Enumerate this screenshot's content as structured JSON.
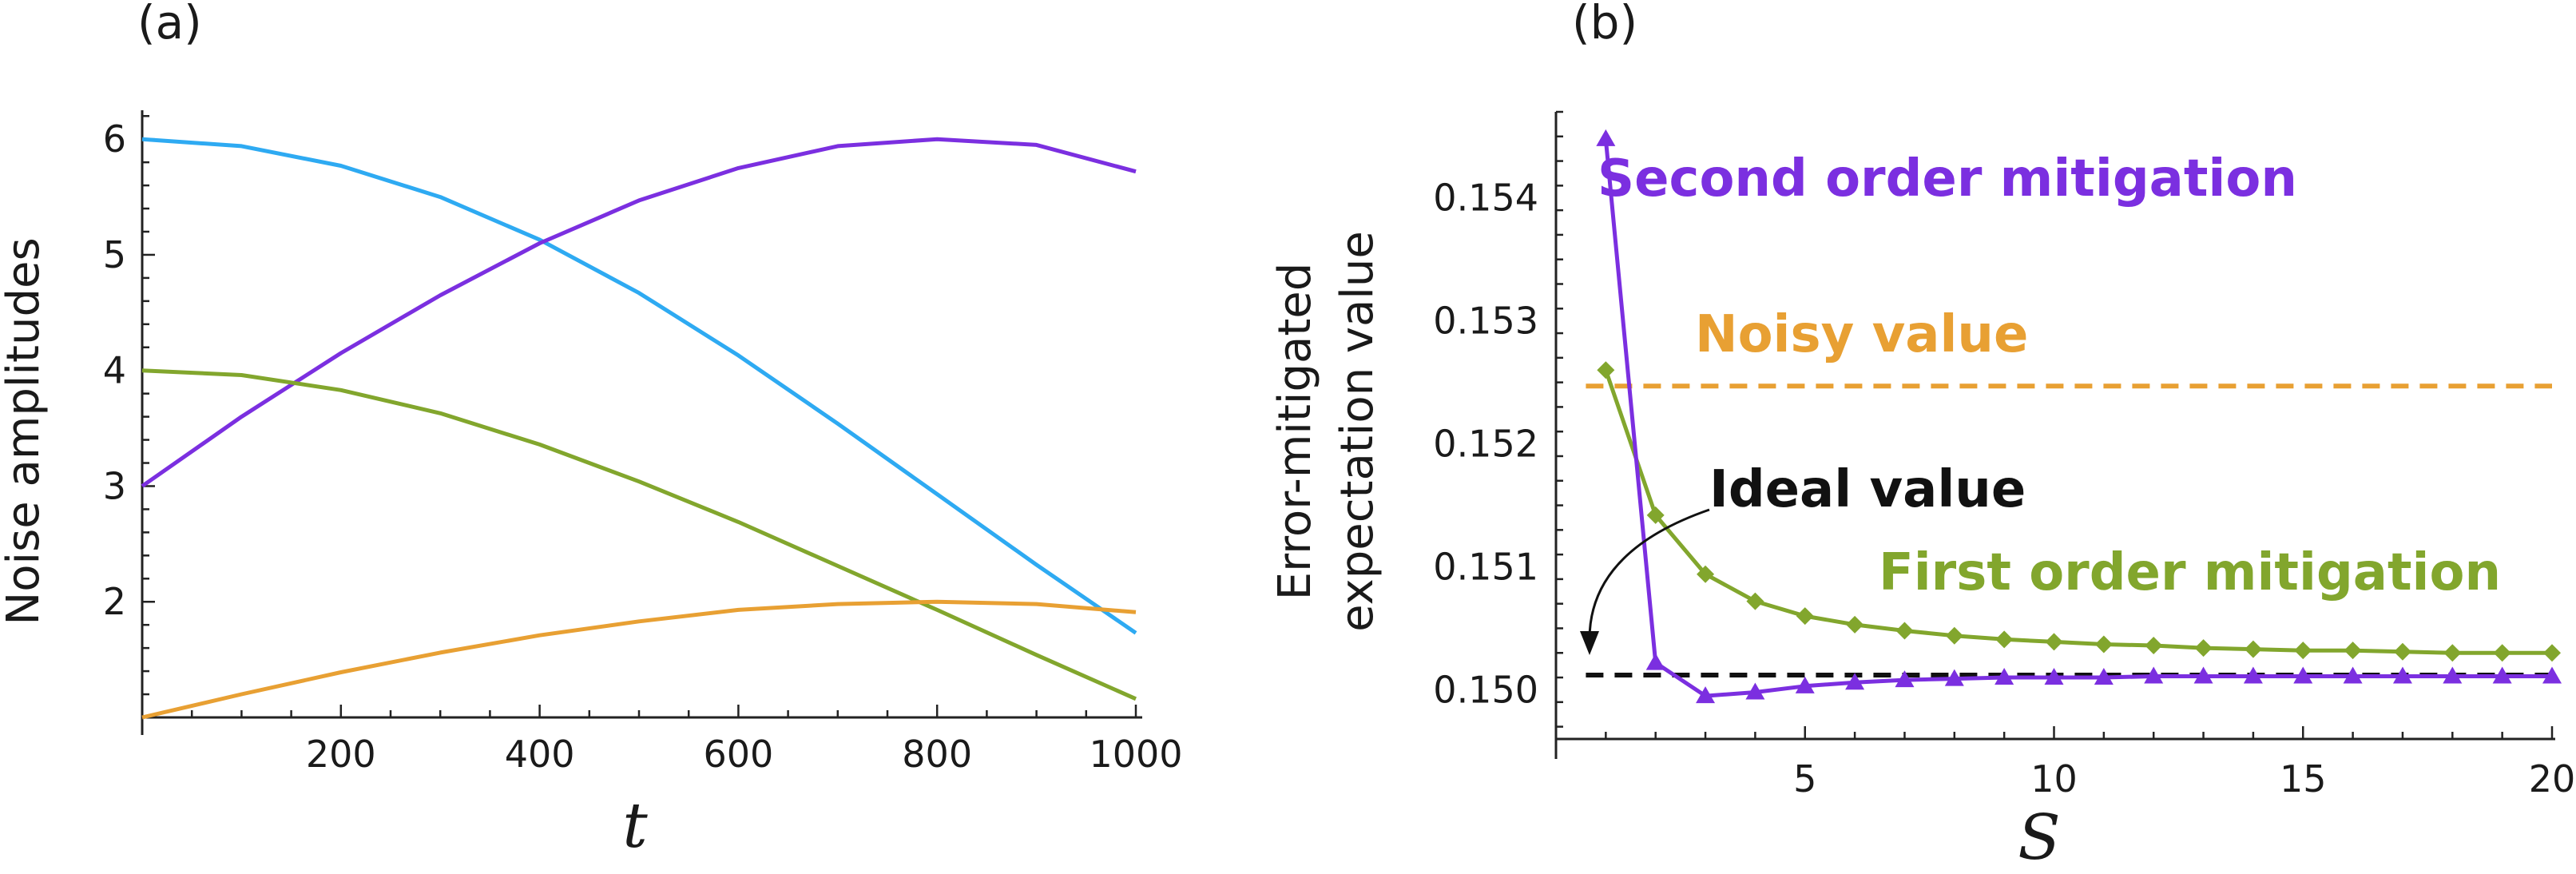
{
  "chart_data": [
    {
      "panel_label": "(a)",
      "type": "line",
      "title": "",
      "xlabel": "t",
      "ylabel": "Noise amplitudes",
      "xlim": [
        0,
        1000
      ],
      "ylim": [
        1,
        6.25
      ],
      "xticks": [
        200,
        400,
        600,
        800,
        1000
      ],
      "yticks": [
        2,
        3,
        4,
        5,
        6
      ],
      "series": [
        {
          "name": "blue",
          "color": "#2EAAF2",
          "x": [
            0,
            100,
            200,
            300,
            400,
            500,
            600,
            700,
            800,
            900,
            1000
          ],
          "y": [
            6.0,
            5.94,
            5.77,
            5.5,
            5.13,
            4.67,
            4.13,
            3.54,
            2.93,
            2.32,
            1.73
          ]
        },
        {
          "name": "purple",
          "color": "#7B2FE0",
          "x": [
            0,
            100,
            200,
            300,
            400,
            500,
            600,
            700,
            800,
            900,
            1000
          ],
          "y": [
            3.0,
            3.6,
            4.15,
            4.65,
            5.1,
            5.47,
            5.75,
            5.94,
            6.0,
            5.95,
            5.72
          ]
        },
        {
          "name": "green",
          "color": "#82A62D",
          "x": [
            0,
            100,
            200,
            300,
            400,
            500,
            600,
            700,
            800,
            900,
            1000
          ],
          "y": [
            4.0,
            3.96,
            3.83,
            3.63,
            3.36,
            3.04,
            2.69,
            2.31,
            1.93,
            1.54,
            1.16
          ]
        },
        {
          "name": "orange",
          "color": "#E8A033",
          "x": [
            0,
            100,
            200,
            300,
            400,
            500,
            600,
            700,
            800,
            900,
            1000
          ],
          "y": [
            1.0,
            1.2,
            1.39,
            1.56,
            1.71,
            1.83,
            1.93,
            1.98,
            2.0,
            1.98,
            1.91
          ]
        }
      ]
    },
    {
      "panel_label": "(b)",
      "type": "line",
      "title": "",
      "xlabel": "S",
      "ylabel_line1": "Error-mitigated",
      "ylabel_line2": "expectation value",
      "xlim": [
        0,
        20
      ],
      "ylim": [
        0.1496,
        0.1547
      ],
      "xticks": [
        5,
        10,
        15,
        20
      ],
      "yticks": [
        0.15,
        0.151,
        0.152,
        0.153,
        0.154
      ],
      "ytick_labels": [
        "0.150",
        "0.151",
        "0.152",
        "0.153",
        "0.154"
      ],
      "series": [
        {
          "name": "Second order mitigation",
          "color": "#7B2FE0",
          "marker": "triangle",
          "x": [
            1,
            2,
            3,
            4,
            5,
            6,
            7,
            8,
            9,
            10,
            11,
            12,
            13,
            14,
            15,
            16,
            17,
            18,
            19,
            20
          ],
          "y": [
            0.15448,
            0.15022,
            0.14995,
            0.14998,
            0.15003,
            0.15006,
            0.15008,
            0.15009,
            0.1501,
            0.1501,
            0.1501,
            0.15011,
            0.15011,
            0.15011,
            0.15011,
            0.15011,
            0.15011,
            0.15011,
            0.15011,
            0.15011
          ]
        },
        {
          "name": "First order mitigation",
          "color": "#82A62D",
          "marker": "diamond",
          "x": [
            1,
            2,
            3,
            4,
            5,
            6,
            7,
            8,
            9,
            10,
            11,
            12,
            13,
            14,
            15,
            16,
            17,
            18,
            19,
            20
          ],
          "y": [
            0.1526,
            0.15142,
            0.15094,
            0.15072,
            0.1506,
            0.15053,
            0.15048,
            0.15044,
            0.15041,
            0.15039,
            0.15037,
            0.15036,
            0.15034,
            0.15033,
            0.15032,
            0.15032,
            0.15031,
            0.1503,
            0.1503,
            0.1503
          ]
        }
      ],
      "reference_lines": [
        {
          "name": "Noisy value",
          "y": 0.15247,
          "color": "#E8A033",
          "style": "dashed"
        },
        {
          "name": "Ideal value",
          "y": 0.15012,
          "color": "#111111",
          "style": "dashed"
        }
      ],
      "annotations": {
        "second_order": "Second order mitigation",
        "noisy": "Noisy value",
        "ideal": "Ideal value",
        "first_order": "First order mitigation"
      }
    }
  ]
}
